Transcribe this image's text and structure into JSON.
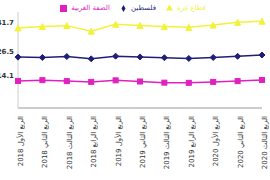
{
  "chart_data": {
    "type": "line",
    "categories": [
      "الربع الأول 2018",
      "الربع الثاني 2018",
      "الربع الثالث 2018",
      "الربع الرابع 2018",
      "الربع الأول 2019",
      "الربع الثاني 2019",
      "الربع الثالث 2019",
      "الربع الرابع 2019",
      "الربع الأول 2020",
      "الربع الثاني 2020",
      "الربع الثالث 2020"
    ],
    "ylim": [
      0,
      50
    ],
    "grid": false,
    "legend": "top",
    "tick_labels": "x",
    "series": [
      {
        "name": "فلسطين",
        "color": "#1f1f78",
        "marker": "diamond",
        "values": [
          26.5,
          26.3,
          26.8,
          25.6,
          27.0,
          26.6,
          26.2,
          25.8,
          26.3,
          26.9,
          27.6
        ],
        "value_labels": [
          "26.5",
          null,
          null,
          null,
          null,
          null,
          null,
          null,
          null,
          null,
          null
        ]
      },
      {
        "name": "الضفة الغربية",
        "color": "#e020c0",
        "marker": "square",
        "values": [
          14.1,
          14.5,
          14.0,
          13.6,
          14.4,
          13.8,
          13.2,
          13.1,
          13.6,
          14.0,
          14.6
        ],
        "value_labels": [
          "14.1",
          null,
          null,
          null,
          null,
          null,
          null,
          null,
          null,
          null,
          null
        ]
      },
      {
        "name": "قطاع غزة",
        "color": "#f2f23a",
        "marker": "triangle",
        "values": [
          41.7,
          42.4,
          42.9,
          40.0,
          43.6,
          43.0,
          42.4,
          42.0,
          43.2,
          44.6,
          45.2
        ],
        "value_labels": [
          "41.7",
          null,
          null,
          null,
          null,
          null,
          null,
          null,
          null,
          null,
          null
        ]
      }
    ]
  }
}
